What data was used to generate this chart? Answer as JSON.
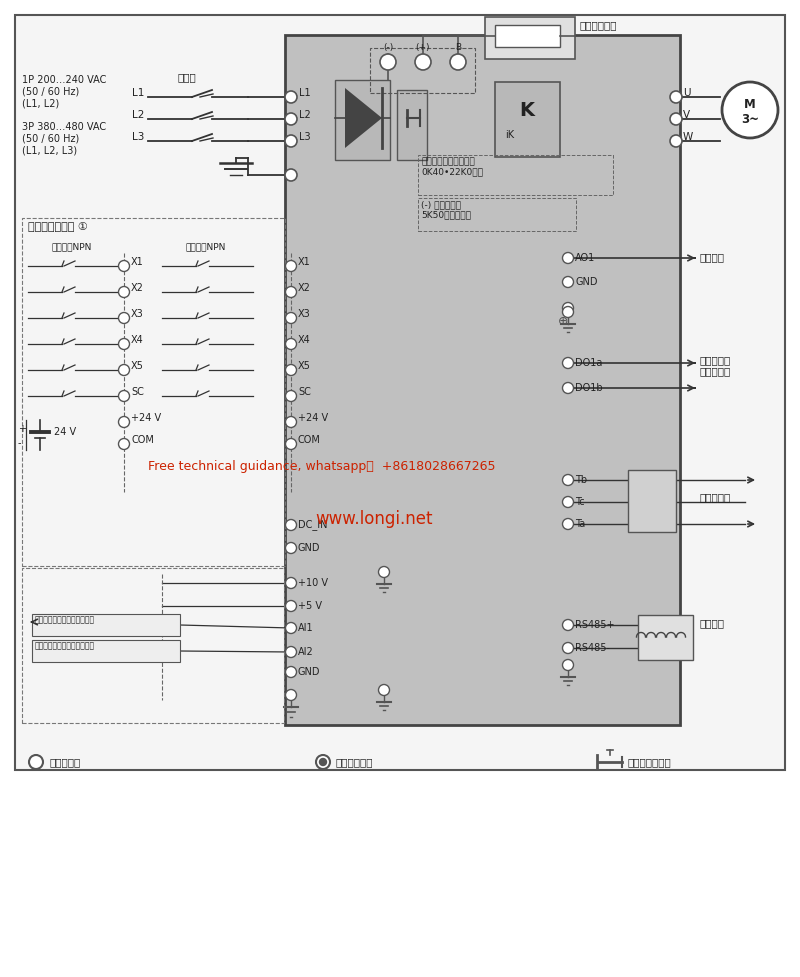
{
  "bg_color": "#ffffff",
  "diagram_bg": "#c0c0c0",
  "border_color": "#444444",
  "watermark1": "Free technical guidance, whatsapp：  +8618028667265",
  "watermark2": "www.longi.net",
  "power_text1": "1P 200…240 VAC\n(50 / 60 Hz)\n(L1, L2)",
  "power_text2": "3P 380…480 VAC\n(50 / 60 Hz)\n(L1, L2, L3)",
  "master_switch": "总开关",
  "braking_res": "外置制动电阔",
  "internal_braking": "内置制动斩波器适用于\n0K40•22K0机型",
  "minus_note": "(-) 端子适用于\n5K50及以上机型",
  "digital_input_label": "多功能数字输入 ①",
  "ext_npn": "外部电源NPN",
  "int_npn": "内部电源NPN",
  "analog_out_label": "模拟输出",
  "open_col_label": "开路集电极\n或脉冲输出",
  "relay_out_label": "继电器输出",
  "comm_label": "通讯接口",
  "main_terminal_label": "主回路端子",
  "ctrl_terminal_label": "控制回路端子",
  "shielded_label": "需使用屏蔽电罆",
  "motor_label": "M\n3~",
  "analog_in1": "模拟电压输入／模拟电流输入",
  "analog_in2": "模拟电压输入／模拟电流输入"
}
